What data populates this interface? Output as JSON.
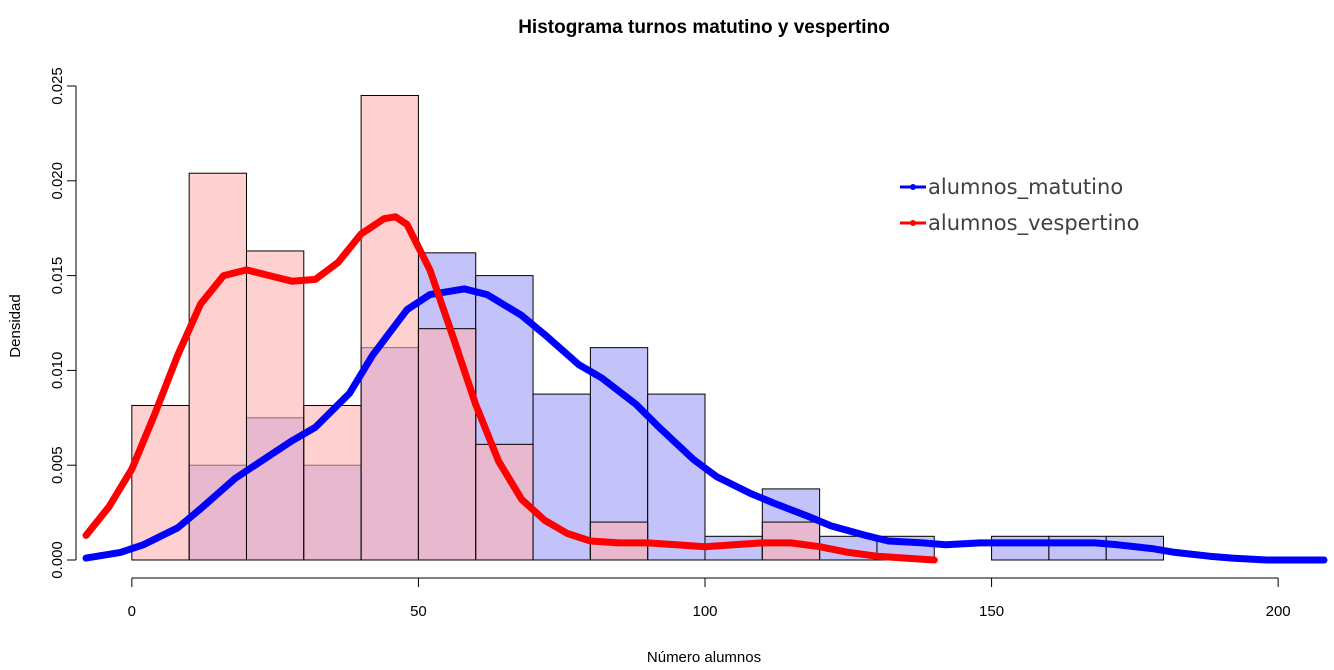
{
  "chart_data": {
    "type": "histogram",
    "title": "Histograma turnos matutino y vespertino",
    "xlabel": "Número alumnos",
    "ylabel": "Densidad",
    "xlim": [
      -8,
      208
    ],
    "ylim": [
      0,
      0.025
    ],
    "x_ticks": [
      0,
      50,
      100,
      150,
      200
    ],
    "y_ticks": [
      0,
      0.005,
      0.01,
      0.015,
      0.02,
      0.025
    ],
    "x_tick_labels": [
      "0",
      "50",
      "100",
      "150",
      "200"
    ],
    "y_tick_labels": [
      "0.000",
      "0.005",
      "0.010",
      "0.015",
      "0.020",
      "0.025"
    ],
    "legend_position": "top-right",
    "series": [
      {
        "name": "alumnos_matutino",
        "line_color": "#0000FF",
        "fill_color": "#BCBCF8",
        "bins": [
          {
            "from": 10,
            "to": 20,
            "density": 0.005
          },
          {
            "from": 20,
            "to": 30,
            "density": 0.0075
          },
          {
            "from": 30,
            "to": 40,
            "density": 0.005
          },
          {
            "from": 40,
            "to": 50,
            "density": 0.0112
          },
          {
            "from": 50,
            "to": 60,
            "density": 0.0162
          },
          {
            "from": 60,
            "to": 70,
            "density": 0.015
          },
          {
            "from": 70,
            "to": 80,
            "density": 0.00875
          },
          {
            "from": 80,
            "to": 90,
            "density": 0.0112
          },
          {
            "from": 90,
            "to": 100,
            "density": 0.00875
          },
          {
            "from": 100,
            "to": 110,
            "density": 0.00125
          },
          {
            "from": 110,
            "to": 120,
            "density": 0.00375
          },
          {
            "from": 120,
            "to": 130,
            "density": 0.00125
          },
          {
            "from": 130,
            "to": 140,
            "density": 0.00125
          },
          {
            "from": 150,
            "to": 160,
            "density": 0.00125
          },
          {
            "from": 160,
            "to": 170,
            "density": 0.00125
          },
          {
            "from": 170,
            "to": 180,
            "density": 0.00125
          }
        ],
        "density_curve": {
          "x": [
            -8,
            -2,
            2,
            8,
            12,
            18,
            22,
            28,
            32,
            38,
            42,
            48,
            52,
            58,
            62,
            68,
            72,
            78,
            82,
            88,
            92,
            98,
            102,
            108,
            112,
            118,
            122,
            128,
            132,
            138,
            142,
            148,
            152,
            158,
            162,
            168,
            172,
            178,
            182,
            188,
            192,
            198,
            202,
            208
          ],
          "y": [
            0.0001,
            0.0004,
            0.0008,
            0.0017,
            0.0027,
            0.0043,
            0.0051,
            0.0063,
            0.007,
            0.0088,
            0.0108,
            0.0132,
            0.014,
            0.0143,
            0.014,
            0.0129,
            0.0119,
            0.0103,
            0.0096,
            0.0082,
            0.007,
            0.0053,
            0.0044,
            0.0035,
            0.003,
            0.0023,
            0.0018,
            0.0013,
            0.001,
            0.0009,
            0.0008,
            0.0009,
            0.0009,
            0.0009,
            0.0009,
            0.0009,
            0.0008,
            0.0006,
            0.0004,
            0.0002,
            0.0001,
            0.0,
            0.0,
            0.0
          ]
        }
      },
      {
        "name": "alumnos_vespertino",
        "line_color": "#FF0000",
        "fill_color": "#FFB0B0",
        "bins": [
          {
            "from": 0,
            "to": 10,
            "density": 0.00815
          },
          {
            "from": 10,
            "to": 20,
            "density": 0.0204
          },
          {
            "from": 20,
            "to": 30,
            "density": 0.0163
          },
          {
            "from": 30,
            "to": 40,
            "density": 0.00815
          },
          {
            "from": 40,
            "to": 50,
            "density": 0.0245
          },
          {
            "from": 50,
            "to": 60,
            "density": 0.0122
          },
          {
            "from": 60,
            "to": 70,
            "density": 0.0061
          },
          {
            "from": 80,
            "to": 90,
            "density": 0.002
          },
          {
            "from": 110,
            "to": 120,
            "density": 0.002
          }
        ],
        "density_curve": {
          "x": [
            -8,
            -4,
            0,
            4,
            8,
            12,
            16,
            20,
            24,
            28,
            32,
            36,
            40,
            44,
            46,
            48,
            52,
            56,
            60,
            64,
            68,
            72,
            76,
            80,
            85,
            90,
            95,
            100,
            105,
            110,
            115,
            120,
            125,
            130,
            135,
            140
          ],
          "y": [
            0.0013,
            0.0028,
            0.0048,
            0.0077,
            0.0108,
            0.0135,
            0.015,
            0.0153,
            0.015,
            0.0147,
            0.0148,
            0.0157,
            0.0172,
            0.018,
            0.0181,
            0.0177,
            0.0153,
            0.0118,
            0.0082,
            0.0052,
            0.0032,
            0.0021,
            0.0014,
            0.001,
            0.0009,
            0.0009,
            0.0008,
            0.0007,
            0.0008,
            0.0009,
            0.0009,
            0.0007,
            0.0004,
            0.0002,
            0.0001,
            0.0
          ]
        }
      }
    ]
  }
}
